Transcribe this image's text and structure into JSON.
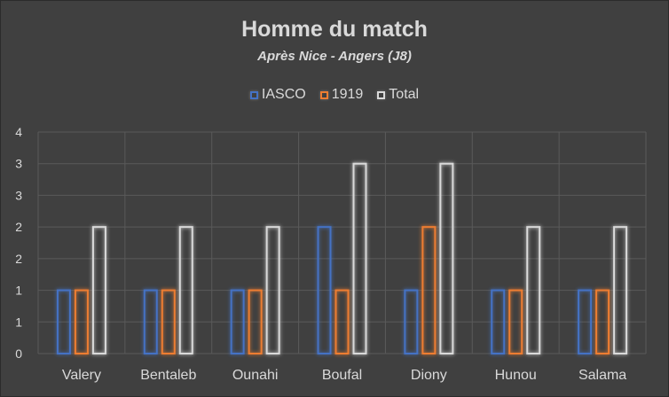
{
  "chart_data": {
    "type": "bar",
    "title": "Homme du match",
    "subtitle": "Après Nice - Angers (J8)",
    "categories": [
      "Valery",
      "Bentaleb",
      "Ounahi",
      "Boufal",
      "Diony",
      "Hunou",
      "Salama"
    ],
    "series": [
      {
        "name": "IASCO",
        "color": "#4472c4",
        "values": [
          1,
          1,
          1,
          2,
          1,
          1,
          1
        ]
      },
      {
        "name": "1919",
        "color": "#ed7d31",
        "values": [
          1,
          1,
          1,
          1,
          2,
          1,
          1
        ]
      },
      {
        "name": "Total",
        "color": "#d9d9d9",
        "values": [
          2,
          2,
          2,
          3,
          3,
          2,
          2
        ]
      }
    ],
    "y_tick_labels": [
      "0",
      "1",
      "1",
      "2",
      "2",
      "3",
      "3",
      "4"
    ],
    "ylim": [
      0,
      3.5
    ],
    "grid": true,
    "legend_position": "top-center",
    "style": "outlined bars with glow"
  }
}
